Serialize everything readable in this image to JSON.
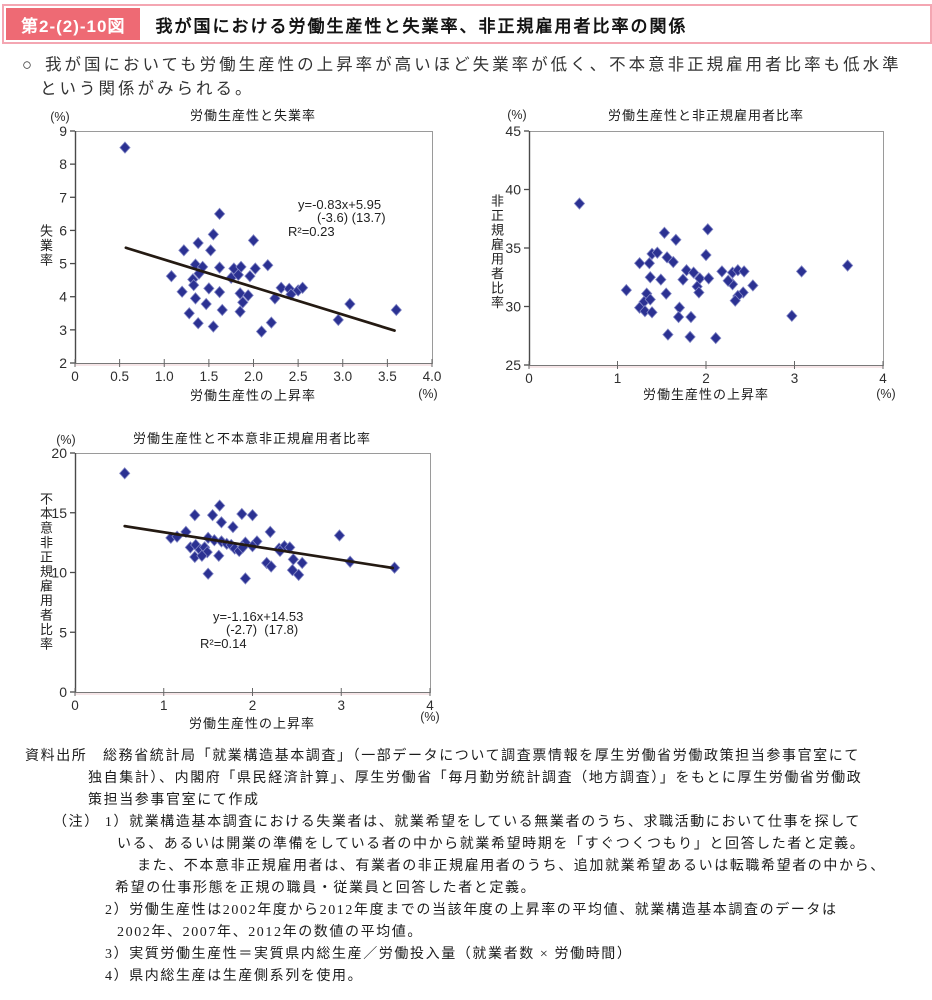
{
  "header": {
    "figure_number": "第2-(2)-10図",
    "title": "我が国における労働生産性と失業率、非正規雇用者比率の関係"
  },
  "intro": {
    "bullet": "○",
    "line1": "我が国においても労働生産性の上昇率が高いほど失業率が低く、不本意非正規雇用者比率も低水準",
    "line2": "という関係がみられる。"
  },
  "colors": {
    "accent_pink": "#ee6a74",
    "border_pink": "#f4a6b2",
    "marker_navy": "#2b3192",
    "trend_line": "#241a12",
    "frame_gray": "#9a9a9a"
  },
  "chart_data": [
    {
      "type": "scatter",
      "title": "労働生産性と失業率",
      "x_axis_label": "労働生産性の上昇率",
      "y_axis_label": "失業率",
      "unit_top": "(%)",
      "unit_right": "(%)",
      "xlim": [
        0,
        4
      ],
      "ylim": [
        2,
        9
      ],
      "grid": false,
      "xticks": [
        {
          "v": 0,
          "l": "0"
        },
        {
          "v": 0.5,
          "l": "0.5"
        },
        {
          "v": 1,
          "l": "1.0"
        },
        {
          "v": 1.5,
          "l": "1.5"
        },
        {
          "v": 2,
          "l": "2.0"
        },
        {
          "v": 2.5,
          "l": "2.5"
        },
        {
          "v": 3,
          "l": "3.0"
        },
        {
          "v": 3.5,
          "l": "3.5"
        },
        {
          "v": 4,
          "l": "4.0"
        }
      ],
      "yticks": [
        {
          "v": 2,
          "l": "2"
        },
        {
          "v": 3,
          "l": "3"
        },
        {
          "v": 4,
          "l": "4"
        },
        {
          "v": 5,
          "l": "5"
        },
        {
          "v": 6,
          "l": "6"
        },
        {
          "v": 7,
          "l": "7"
        },
        {
          "v": 8,
          "l": "8"
        },
        {
          "v": 9,
          "l": "9"
        }
      ],
      "points": [
        [
          0.56,
          8.5
        ],
        [
          1.62,
          6.5
        ],
        [
          1.55,
          5.88
        ],
        [
          2.0,
          5.7
        ],
        [
          1.38,
          5.62
        ],
        [
          1.22,
          5.4
        ],
        [
          1.52,
          5.4
        ],
        [
          1.35,
          4.97
        ],
        [
          1.43,
          4.9
        ],
        [
          2.16,
          4.95
        ],
        [
          1.62,
          4.88
        ],
        [
          1.78,
          4.85
        ],
        [
          1.86,
          4.9
        ],
        [
          2.02,
          4.85
        ],
        [
          1.39,
          4.7
        ],
        [
          1.08,
          4.62
        ],
        [
          1.32,
          4.52
        ],
        [
          1.75,
          4.57
        ],
        [
          1.83,
          4.66
        ],
        [
          1.96,
          4.62
        ],
        [
          1.33,
          4.35
        ],
        [
          1.5,
          4.25
        ],
        [
          1.2,
          4.15
        ],
        [
          1.62,
          4.14
        ],
        [
          2.31,
          4.27
        ],
        [
          2.4,
          4.24
        ],
        [
          2.5,
          4.19
        ],
        [
          2.55,
          4.27
        ],
        [
          2.42,
          4.07
        ],
        [
          1.85,
          4.1
        ],
        [
          1.94,
          4.04
        ],
        [
          1.88,
          3.83
        ],
        [
          1.35,
          3.95
        ],
        [
          1.47,
          3.78
        ],
        [
          2.24,
          3.95
        ],
        [
          1.65,
          3.6
        ],
        [
          1.85,
          3.55
        ],
        [
          1.28,
          3.5
        ],
        [
          3.08,
          3.78
        ],
        [
          3.6,
          3.6
        ],
        [
          2.95,
          3.3
        ],
        [
          2.2,
          3.22
        ],
        [
          1.38,
          3.2
        ],
        [
          1.55,
          3.1
        ],
        [
          2.09,
          2.95
        ]
      ],
      "trend": {
        "slope": -0.83,
        "intercept": 5.95,
        "x_start": 0.57,
        "x_end": 3.58
      },
      "annotation": [
        "y=-0.83x+5.95",
        "(-3.6) (13.7)",
        "R²=0.23"
      ]
    },
    {
      "type": "scatter",
      "title": "労働生産性と非正規雇用者比率",
      "x_axis_label": "労働生産性の上昇率",
      "y_axis_label": "非正規雇用者比率",
      "unit_top": "(%)",
      "unit_right": "(%)",
      "xlim": [
        0,
        4
      ],
      "ylim": [
        25,
        45
      ],
      "grid": false,
      "xticks": [
        {
          "v": 0,
          "l": "0"
        },
        {
          "v": 1,
          "l": "1"
        },
        {
          "v": 2,
          "l": "2"
        },
        {
          "v": 3,
          "l": "3"
        },
        {
          "v": 4,
          "l": "4"
        }
      ],
      "yticks": [
        {
          "v": 25,
          "l": "25"
        },
        {
          "v": 30,
          "l": "30"
        },
        {
          "v": 35,
          "l": "35"
        },
        {
          "v": 40,
          "l": "40"
        },
        {
          "v": 45,
          "l": "45"
        }
      ],
      "points": [
        [
          0.57,
          38.8
        ],
        [
          1.53,
          36.3
        ],
        [
          1.66,
          35.7
        ],
        [
          2.02,
          36.6
        ],
        [
          2.0,
          34.4
        ],
        [
          1.39,
          34.5
        ],
        [
          1.45,
          34.6
        ],
        [
          1.56,
          34.2
        ],
        [
          1.63,
          33.8
        ],
        [
          1.25,
          33.7
        ],
        [
          1.36,
          33.7
        ],
        [
          1.78,
          33.1
        ],
        [
          1.86,
          32.9
        ],
        [
          1.37,
          32.5
        ],
        [
          1.49,
          32.3
        ],
        [
          1.74,
          32.3
        ],
        [
          1.93,
          32.4
        ],
        [
          2.03,
          32.4
        ],
        [
          2.18,
          33.0
        ],
        [
          2.3,
          32.9
        ],
        [
          2.36,
          33.1
        ],
        [
          2.43,
          33.0
        ],
        [
          1.9,
          31.7
        ],
        [
          1.92,
          31.2
        ],
        [
          1.1,
          31.4
        ],
        [
          1.33,
          31.1
        ],
        [
          1.3,
          30.4
        ],
        [
          1.37,
          30.6
        ],
        [
          1.25,
          29.9
        ],
        [
          1.31,
          29.6
        ],
        [
          1.39,
          29.5
        ],
        [
          1.55,
          31.1
        ],
        [
          1.7,
          29.9
        ],
        [
          1.69,
          29.1
        ],
        [
          1.83,
          29.1
        ],
        [
          1.57,
          27.6
        ],
        [
          1.82,
          27.4
        ],
        [
          2.11,
          27.3
        ],
        [
          2.3,
          31.9
        ],
        [
          2.42,
          31.2
        ],
        [
          2.53,
          31.8
        ],
        [
          2.36,
          30.9
        ],
        [
          2.33,
          30.5
        ],
        [
          2.97,
          29.2
        ],
        [
          3.08,
          33.0
        ],
        [
          3.6,
          33.5
        ],
        [
          2.25,
          32.2
        ]
      ]
    },
    {
      "type": "scatter",
      "title": "労働生産性と不本意非正規雇用者比率",
      "x_axis_label": "労働生産性の上昇率",
      "y_axis_label": "不本意非正規雇用者比率",
      "unit_top": "(%)",
      "unit_right": "(%)",
      "xlim": [
        0,
        4
      ],
      "ylim": [
        0,
        20
      ],
      "grid": false,
      "xticks": [
        {
          "v": 0,
          "l": "0"
        },
        {
          "v": 1,
          "l": "1"
        },
        {
          "v": 2,
          "l": "2"
        },
        {
          "v": 3,
          "l": "3"
        },
        {
          "v": 4,
          "l": "4"
        }
      ],
      "yticks": [
        {
          "v": 0,
          "l": "0"
        },
        {
          "v": 5,
          "l": "5"
        },
        {
          "v": 10,
          "l": "10"
        },
        {
          "v": 15,
          "l": "15"
        },
        {
          "v": 20,
          "l": "20"
        }
      ],
      "points": [
        [
          0.56,
          18.3
        ],
        [
          1.63,
          15.6
        ],
        [
          1.35,
          14.8
        ],
        [
          1.55,
          14.8
        ],
        [
          1.88,
          14.9
        ],
        [
          2.0,
          14.8
        ],
        [
          1.65,
          14.2
        ],
        [
          1.78,
          13.8
        ],
        [
          2.2,
          13.4
        ],
        [
          2.98,
          13.1
        ],
        [
          1.08,
          12.9
        ],
        [
          1.15,
          13.0
        ],
        [
          1.25,
          13.4
        ],
        [
          1.5,
          12.9
        ],
        [
          1.57,
          12.7
        ],
        [
          1.65,
          12.6
        ],
        [
          1.71,
          12.4
        ],
        [
          1.76,
          12.3
        ],
        [
          1.92,
          12.5
        ],
        [
          2.05,
          12.6
        ],
        [
          1.3,
          12.1
        ],
        [
          1.36,
          12.3
        ],
        [
          1.41,
          11.9
        ],
        [
          1.46,
          12.1
        ],
        [
          1.49,
          11.7
        ],
        [
          1.8,
          12.0
        ],
        [
          1.85,
          11.8
        ],
        [
          1.89,
          12.1
        ],
        [
          2.0,
          12.2
        ],
        [
          1.35,
          11.3
        ],
        [
          1.43,
          11.4
        ],
        [
          1.62,
          11.4
        ],
        [
          2.3,
          12.0
        ],
        [
          2.36,
          12.2
        ],
        [
          2.42,
          12.1
        ],
        [
          2.31,
          11.8
        ],
        [
          2.46,
          11.1
        ],
        [
          2.56,
          10.8
        ],
        [
          2.16,
          10.8
        ],
        [
          2.21,
          10.5
        ],
        [
          1.5,
          9.9
        ],
        [
          1.92,
          9.5
        ],
        [
          2.45,
          10.2
        ],
        [
          2.52,
          9.8
        ],
        [
          3.1,
          10.9
        ],
        [
          3.6,
          10.4
        ]
      ],
      "trend": {
        "slope": -1.16,
        "intercept": 14.53,
        "x_start": 0.56,
        "x_end": 3.58
      },
      "annotation": [
        "y=-1.16x+14.53",
        "(-2.7)  (17.8)",
        "R²=0.14"
      ]
    }
  ],
  "notes": {
    "lines": [
      "資料出所　総務省統計局「就業構造基本調査」（一部データについて調査票情報を厚生労働省労働政策担当参事官室にて",
      "独自集計）、内閣府「県民経済計算」、厚生労働省「毎月勤労統計調査（地方調査）」をもとに厚生労働省労働政",
      "策担当参事官室にて作成",
      "（注） 1）就業構造基本調査における失業者は、就業希望をしている無業者のうち、求職活動において仕事を探して",
      "いる、あるいは開業の準備をしている者の中から就業希望時期を「すぐつくつもり」と回答した者と定義。",
      "また、不本意非正規雇用者は、有業者の非正規雇用者のうち、追加就業希望あるいは転職希望者の中から、",
      "希望の仕事形態を正規の職員・従業員と回答した者と定義。",
      "2）労働生産性は2002年度から2012年度までの当該年度の上昇率の平均値、就業構造基本調査のデータは",
      "2002年、2007年、2012年の数値の平均値。",
      "3）実質労働生産性＝実質県内総生産／労働投入量（就業者数 × 労働時間）",
      "4）県内総生産は生産側系列を使用。"
    ]
  }
}
